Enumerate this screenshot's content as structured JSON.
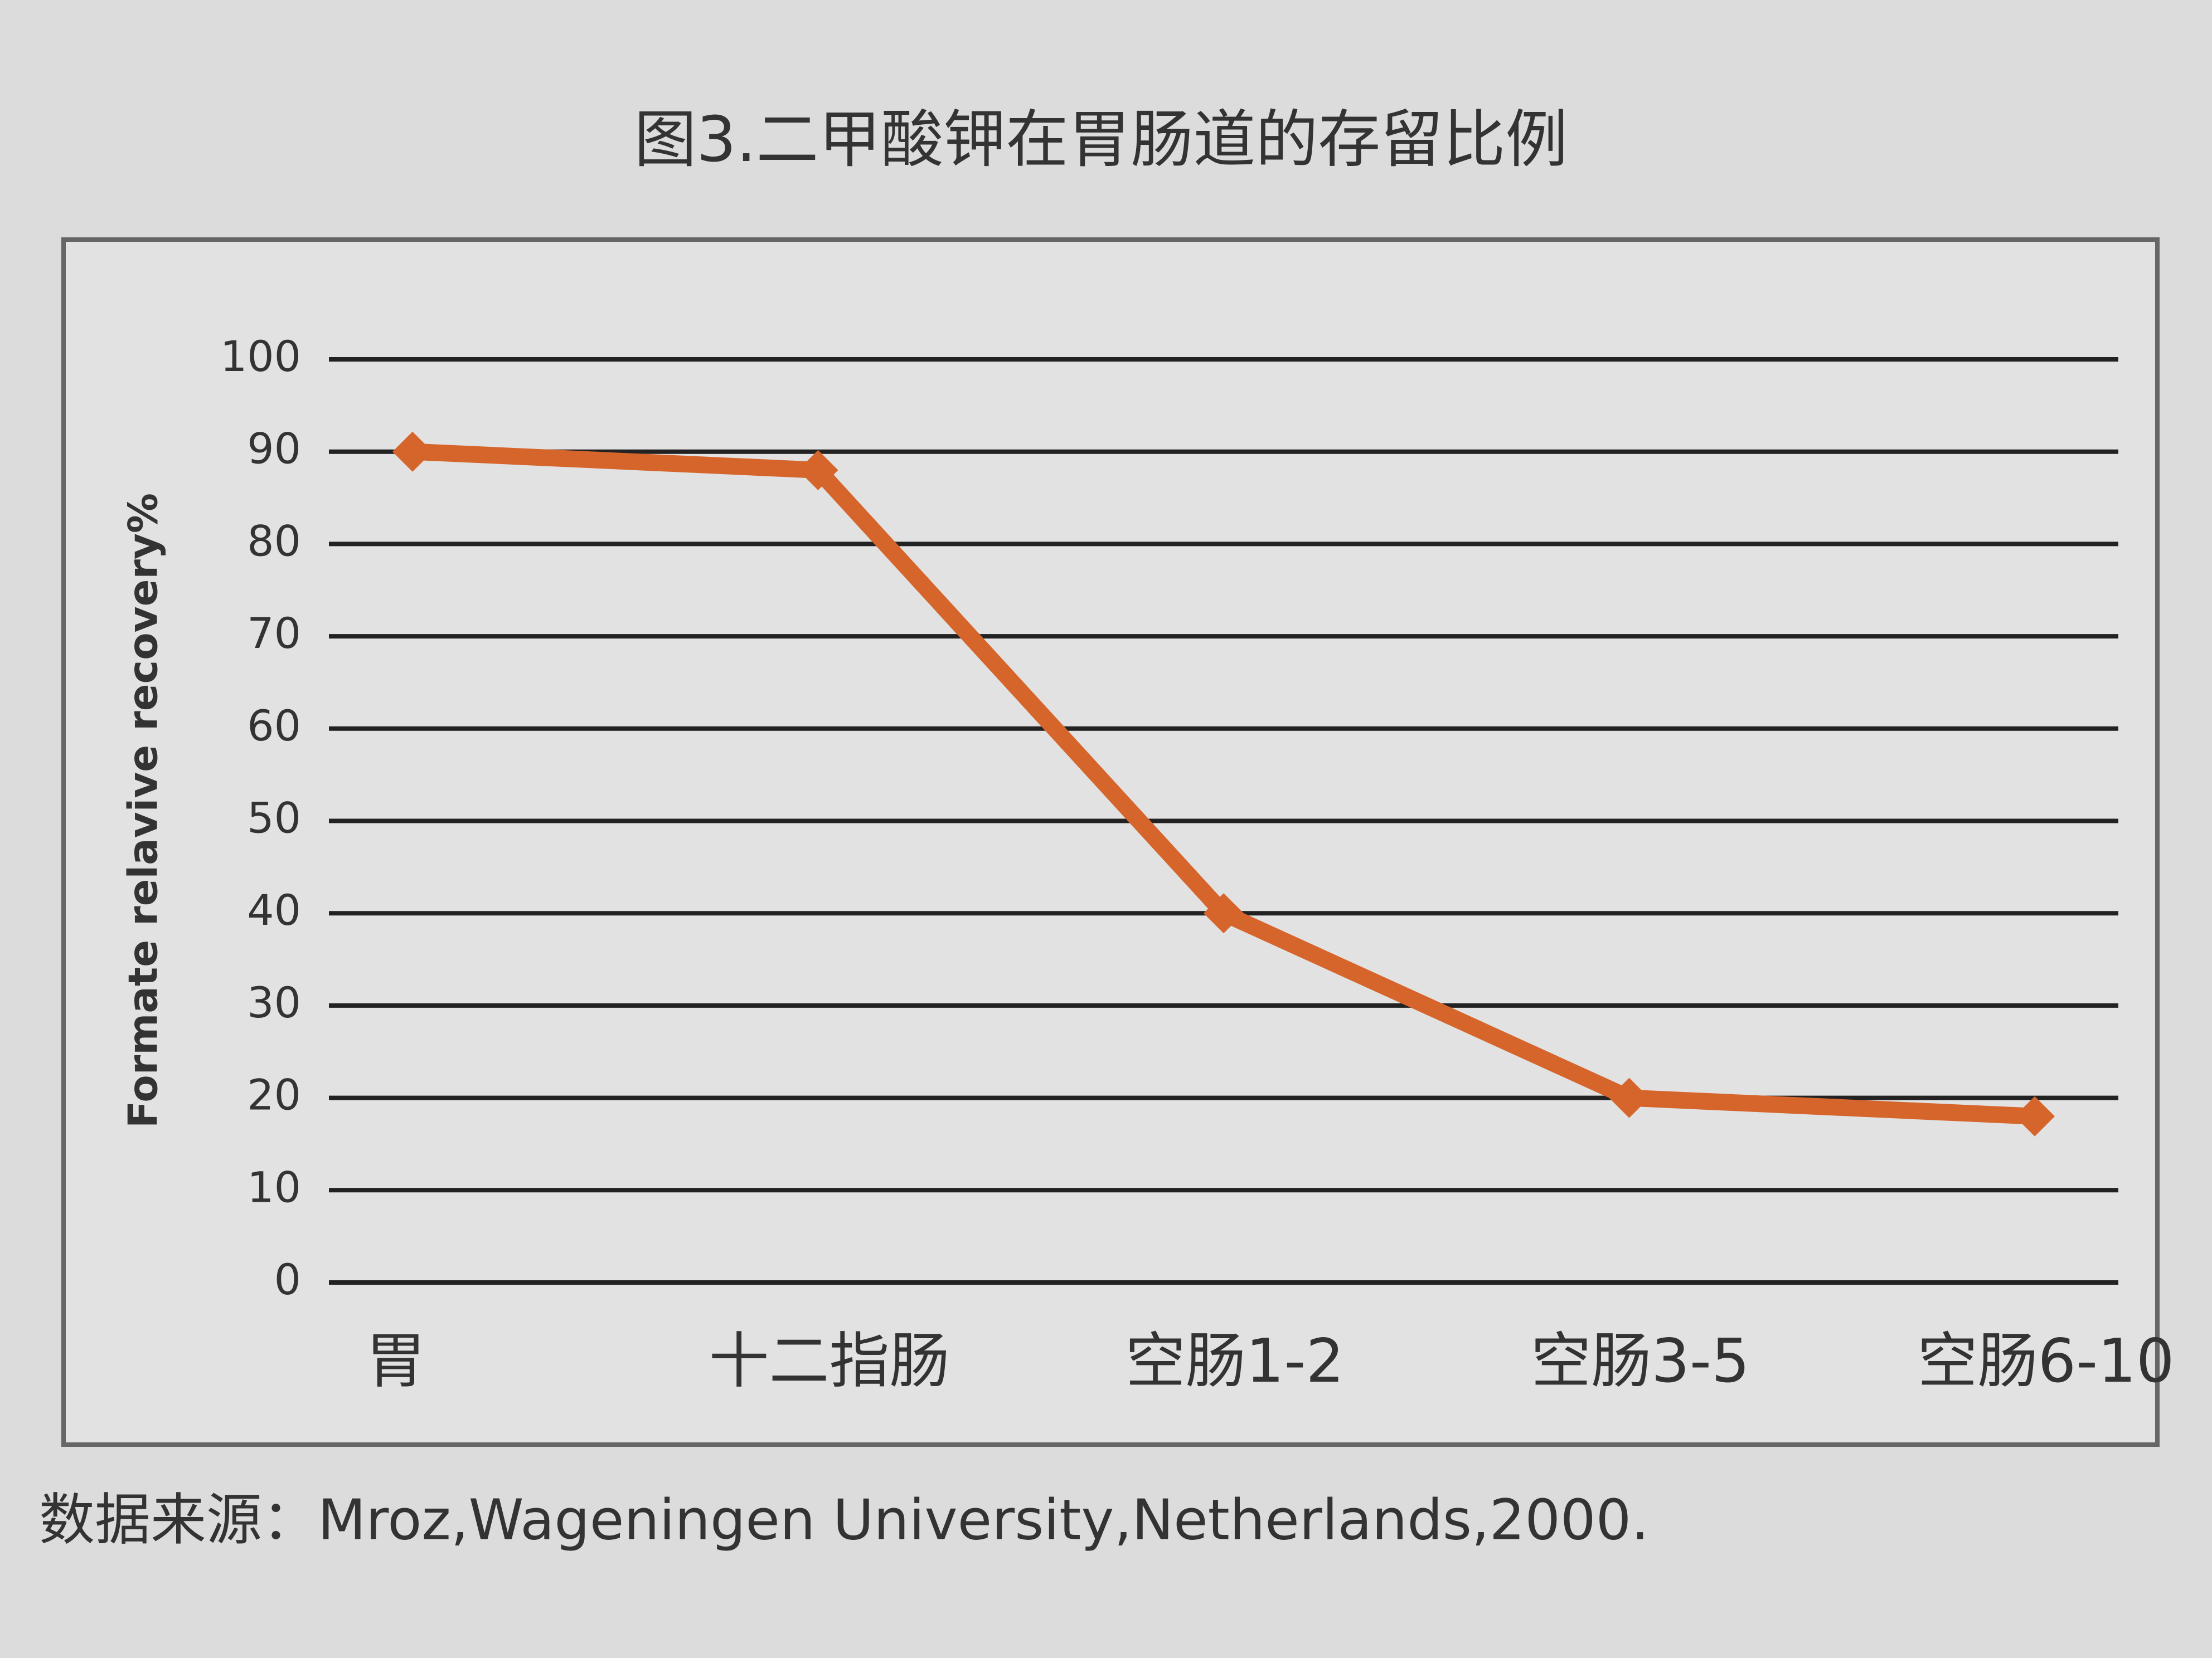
{
  "chart_data": {
    "type": "line",
    "title": "图3.二甲酸钾在胃肠道的存留比例",
    "y_label": "Formate relavive recovery%",
    "source": "数据来源：Mroz,Wageningen University,Netherlands,2000.",
    "categories": [
      "胃",
      "十二指肠",
      "空肠1-2",
      "空肠3-5",
      "空肠6-10"
    ],
    "values": [
      90,
      88,
      40,
      20,
      18
    ],
    "color": "#d6652c",
    "ylim": [
      0,
      100
    ],
    "yticks": [
      0,
      10,
      20,
      30,
      40,
      50,
      60,
      70,
      80,
      90,
      100
    ],
    "grid": true
  }
}
